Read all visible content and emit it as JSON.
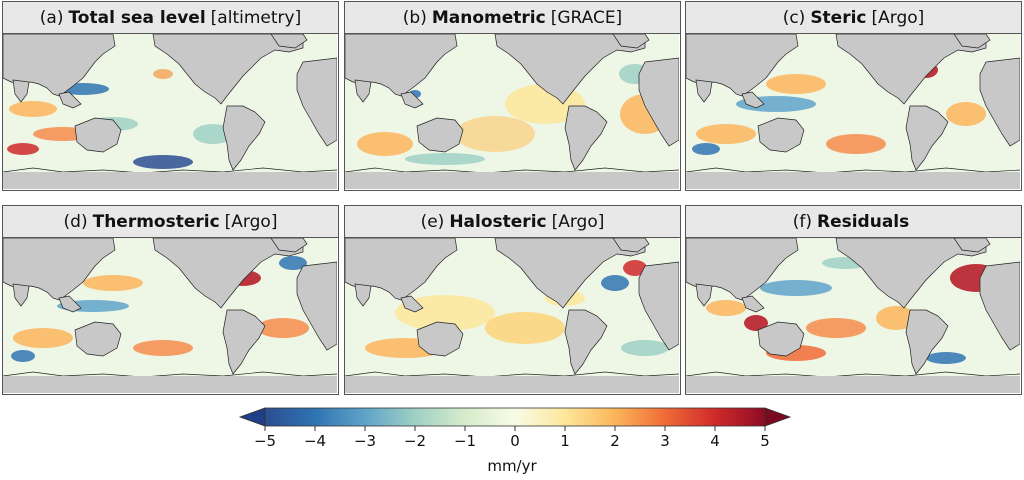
{
  "panels": [
    {
      "id": "a",
      "prefix": "(a)",
      "name": "Total sea level",
      "source": "[altimetry]"
    },
    {
      "id": "b",
      "prefix": "(b)",
      "name": "Manometric",
      "source": "[GRACE]"
    },
    {
      "id": "c",
      "prefix": "(c)",
      "name": "Steric",
      "source": "[Argo]"
    },
    {
      "id": "d",
      "prefix": "(d)",
      "name": "Thermosteric",
      "source": "[Argo]"
    },
    {
      "id": "e",
      "prefix": "(e)",
      "name": "Halosteric",
      "source": "[Argo]"
    },
    {
      "id": "f",
      "prefix": "(f)",
      "name": "Residuals",
      "source": ""
    }
  ],
  "colorbar": {
    "ticks": [
      "−5",
      "−4",
      "−3",
      "−2",
      "−1",
      "0",
      "1",
      "2",
      "3",
      "4",
      "5"
    ],
    "unit": "mm/yr",
    "colormap": "RdYlBu_r"
  },
  "colors": {
    "land": "#c8c8c8",
    "ocean_neutral": "#f2f7ef",
    "frame": "#555555",
    "title_bg": "#e8e8e8"
  }
}
